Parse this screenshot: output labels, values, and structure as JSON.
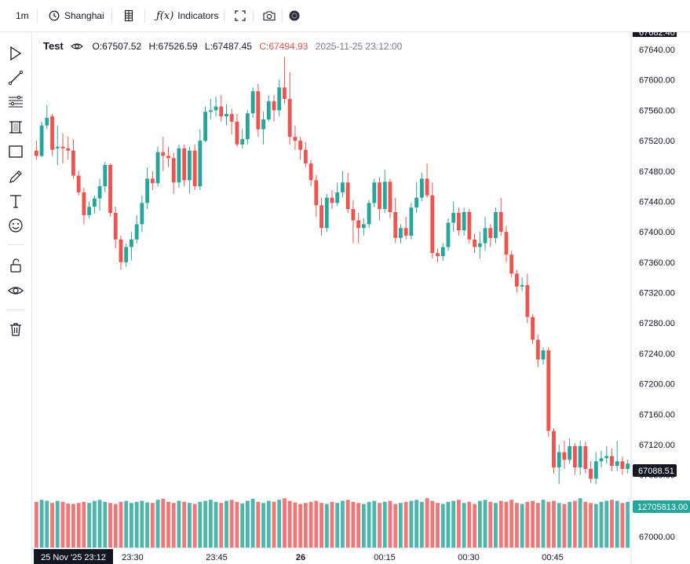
{
  "toolbar": {
    "interval": "1m",
    "timezone": "Shanghai",
    "indicators_label": "Indicators",
    "fx_label": "ƒ(x)",
    "icons": [
      "clock-icon",
      "bar-style-icon",
      "fullscreen-icon",
      "camera-icon",
      "theme-icon"
    ]
  },
  "drawing_tools": [
    "cursor-icon",
    "trend-line-icon",
    "fib-icon",
    "pattern-icon",
    "rectangle-icon",
    "brush-icon",
    "text-icon",
    "emoji-icon",
    "lock-icon",
    "eye-icon",
    "trash-icon"
  ],
  "legend": {
    "symbol": "Test",
    "open": "O:67507.52",
    "high": "H:67526.59",
    "low": "L:67487.45",
    "close": "C:67494.93",
    "time": "2025-11-25 23:12:00"
  },
  "colors": {
    "up": "#26a69a",
    "down": "#ef5350",
    "up_vol": "#4db6ac",
    "down_vol": "#f07777",
    "grid_text": "#131722"
  },
  "chart_data": {
    "type": "candlestick",
    "price_axis": {
      "ticks": [
        "67640.00",
        "67600.00",
        "67560.00",
        "67520.00",
        "67480.00",
        "67440.00",
        "67400.00",
        "67360.00",
        "67320.00",
        "67280.00",
        "67240.00",
        "67200.00",
        "67160.00",
        "67120.00",
        "67080.00",
        "67000.00"
      ],
      "top_label": "67682.40",
      "last_price_label": "67088.51",
      "volume_label": "12705813.00",
      "range": [
        67000,
        67682.4
      ]
    },
    "time_axis": {
      "ticks": [
        "23:30",
        "23:45",
        "26",
        "00:15",
        "00:30",
        "00:45"
      ],
      "cursor_label": "25 Nov '25  23:12"
    },
    "candles": [
      {
        "o": 67507,
        "h": 67520,
        "l": 67495,
        "c": 67500
      },
      {
        "o": 67500,
        "h": 67545,
        "l": 67498,
        "c": 67540
      },
      {
        "o": 67540,
        "h": 67567,
        "l": 67535,
        "c": 67550
      },
      {
        "o": 67552,
        "h": 67555,
        "l": 67500,
        "c": 67508
      },
      {
        "o": 67510,
        "h": 67540,
        "l": 67488,
        "c": 67512
      },
      {
        "o": 67512,
        "h": 67530,
        "l": 67490,
        "c": 67510
      },
      {
        "o": 67510,
        "h": 67525,
        "l": 67495,
        "c": 67507
      },
      {
        "o": 67507,
        "h": 67522,
        "l": 67470,
        "c": 67474
      },
      {
        "o": 67474,
        "h": 67480,
        "l": 67448,
        "c": 67452
      },
      {
        "o": 67452,
        "h": 67458,
        "l": 67410,
        "c": 67422
      },
      {
        "o": 67422,
        "h": 67440,
        "l": 67418,
        "c": 67433
      },
      {
        "o": 67433,
        "h": 67448,
        "l": 67424,
        "c": 67444
      },
      {
        "o": 67444,
        "h": 67470,
        "l": 67428,
        "c": 67460
      },
      {
        "o": 67460,
        "h": 67492,
        "l": 67452,
        "c": 67488
      },
      {
        "o": 67488,
        "h": 67490,
        "l": 67420,
        "c": 67425
      },
      {
        "o": 67425,
        "h": 67433,
        "l": 67378,
        "c": 67390
      },
      {
        "o": 67390,
        "h": 67395,
        "l": 67350,
        "c": 67360
      },
      {
        "o": 67360,
        "h": 67385,
        "l": 67354,
        "c": 67380
      },
      {
        "o": 67380,
        "h": 67400,
        "l": 67362,
        "c": 67390
      },
      {
        "o": 67390,
        "h": 67422,
        "l": 67385,
        "c": 67410
      },
      {
        "o": 67410,
        "h": 67448,
        "l": 67400,
        "c": 67438
      },
      {
        "o": 67438,
        "h": 67485,
        "l": 67430,
        "c": 67470
      },
      {
        "o": 67470,
        "h": 67480,
        "l": 67455,
        "c": 67464
      },
      {
        "o": 67464,
        "h": 67512,
        "l": 67460,
        "c": 67505
      },
      {
        "o": 67505,
        "h": 67525,
        "l": 67480,
        "c": 67500
      },
      {
        "o": 67500,
        "h": 67512,
        "l": 67485,
        "c": 67497
      },
      {
        "o": 67497,
        "h": 67504,
        "l": 67450,
        "c": 67465
      },
      {
        "o": 67465,
        "h": 67515,
        "l": 67458,
        "c": 67510
      },
      {
        "o": 67510,
        "h": 67515,
        "l": 67460,
        "c": 67468
      },
      {
        "o": 67468,
        "h": 67512,
        "l": 67450,
        "c": 67507
      },
      {
        "o": 67507,
        "h": 67515,
        "l": 67455,
        "c": 67460
      },
      {
        "o": 67460,
        "h": 67535,
        "l": 67455,
        "c": 67520
      },
      {
        "o": 67520,
        "h": 67565,
        "l": 67518,
        "c": 67558
      },
      {
        "o": 67558,
        "h": 67575,
        "l": 67548,
        "c": 67560
      },
      {
        "o": 67560,
        "h": 67578,
        "l": 67552,
        "c": 67565
      },
      {
        "o": 67565,
        "h": 67580,
        "l": 67545,
        "c": 67552
      },
      {
        "o": 67552,
        "h": 67568,
        "l": 67540,
        "c": 67555
      },
      {
        "o": 67555,
        "h": 67562,
        "l": 67528,
        "c": 67545
      },
      {
        "o": 67545,
        "h": 67555,
        "l": 67512,
        "c": 67515
      },
      {
        "o": 67515,
        "h": 67535,
        "l": 67510,
        "c": 67522
      },
      {
        "o": 67522,
        "h": 67560,
        "l": 67515,
        "c": 67556
      },
      {
        "o": 67556,
        "h": 67590,
        "l": 67550,
        "c": 67585
      },
      {
        "o": 67585,
        "h": 67595,
        "l": 67525,
        "c": 67535
      },
      {
        "o": 67535,
        "h": 67558,
        "l": 67515,
        "c": 67548
      },
      {
        "o": 67548,
        "h": 67580,
        "l": 67545,
        "c": 67572
      },
      {
        "o": 67572,
        "h": 67580,
        "l": 67545,
        "c": 67560
      },
      {
        "o": 67560,
        "h": 67600,
        "l": 67552,
        "c": 67590
      },
      {
        "o": 67590,
        "h": 67630,
        "l": 67568,
        "c": 67575
      },
      {
        "o": 67575,
        "h": 67610,
        "l": 67515,
        "c": 67525
      },
      {
        "o": 67525,
        "h": 67540,
        "l": 67508,
        "c": 67520
      },
      {
        "o": 67520,
        "h": 67525,
        "l": 67495,
        "c": 67508
      },
      {
        "o": 67508,
        "h": 67518,
        "l": 67485,
        "c": 67490
      },
      {
        "o": 67490,
        "h": 67495,
        "l": 67460,
        "c": 67468
      },
      {
        "o": 67468,
        "h": 67475,
        "l": 67420,
        "c": 67435
      },
      {
        "o": 67435,
        "h": 67445,
        "l": 67395,
        "c": 67405
      },
      {
        "o": 67405,
        "h": 67450,
        "l": 67400,
        "c": 67445
      },
      {
        "o": 67445,
        "h": 67455,
        "l": 67430,
        "c": 67438
      },
      {
        "o": 67438,
        "h": 67465,
        "l": 67434,
        "c": 67452
      },
      {
        "o": 67452,
        "h": 67480,
        "l": 67445,
        "c": 67465
      },
      {
        "o": 67465,
        "h": 67478,
        "l": 67425,
        "c": 67430
      },
      {
        "o": 67430,
        "h": 67442,
        "l": 67385,
        "c": 67415
      },
      {
        "o": 67415,
        "h": 67425,
        "l": 67385,
        "c": 67405
      },
      {
        "o": 67405,
        "h": 67418,
        "l": 67395,
        "c": 67410
      },
      {
        "o": 67410,
        "h": 67442,
        "l": 67405,
        "c": 67438
      },
      {
        "o": 67438,
        "h": 67470,
        "l": 67432,
        "c": 67465
      },
      {
        "o": 67465,
        "h": 67472,
        "l": 67415,
        "c": 67430
      },
      {
        "o": 67430,
        "h": 67482,
        "l": 67425,
        "c": 67466
      },
      {
        "o": 67466,
        "h": 67470,
        "l": 67418,
        "c": 67426
      },
      {
        "o": 67426,
        "h": 67445,
        "l": 67385,
        "c": 67392
      },
      {
        "o": 67392,
        "h": 67410,
        "l": 67385,
        "c": 67405
      },
      {
        "o": 67405,
        "h": 67420,
        "l": 67390,
        "c": 67395
      },
      {
        "o": 67395,
        "h": 67438,
        "l": 67390,
        "c": 67432
      },
      {
        "o": 67432,
        "h": 67465,
        "l": 67425,
        "c": 67445
      },
      {
        "o": 67445,
        "h": 67478,
        "l": 67440,
        "c": 67470
      },
      {
        "o": 67470,
        "h": 67490,
        "l": 67445,
        "c": 67448
      },
      {
        "o": 67448,
        "h": 67465,
        "l": 67365,
        "c": 67372
      },
      {
        "o": 67372,
        "h": 67378,
        "l": 67360,
        "c": 67368
      },
      {
        "o": 67368,
        "h": 67385,
        "l": 67362,
        "c": 67380
      },
      {
        "o": 67380,
        "h": 67418,
        "l": 67375,
        "c": 67412
      },
      {
        "o": 67412,
        "h": 67440,
        "l": 67400,
        "c": 67425
      },
      {
        "o": 67425,
        "h": 67432,
        "l": 67395,
        "c": 67402
      },
      {
        "o": 67402,
        "h": 67432,
        "l": 67395,
        "c": 67426
      },
      {
        "o": 67426,
        "h": 67430,
        "l": 67385,
        "c": 67390
      },
      {
        "o": 67390,
        "h": 67398,
        "l": 67372,
        "c": 67380
      },
      {
        "o": 67380,
        "h": 67400,
        "l": 67365,
        "c": 67385
      },
      {
        "o": 67385,
        "h": 67420,
        "l": 67375,
        "c": 67405
      },
      {
        "o": 67405,
        "h": 67410,
        "l": 67380,
        "c": 67392
      },
      {
        "o": 67392,
        "h": 67432,
        "l": 67385,
        "c": 67426
      },
      {
        "o": 67426,
        "h": 67445,
        "l": 67395,
        "c": 67400
      },
      {
        "o": 67400,
        "h": 67408,
        "l": 67360,
        "c": 67370
      },
      {
        "o": 67370,
        "h": 67375,
        "l": 67340,
        "c": 67345
      },
      {
        "o": 67345,
        "h": 67350,
        "l": 67320,
        "c": 67328
      },
      {
        "o": 67328,
        "h": 67340,
        "l": 67322,
        "c": 67330
      },
      {
        "o": 67330,
        "h": 67345,
        "l": 67280,
        "c": 67288
      },
      {
        "o": 67288,
        "h": 67292,
        "l": 67252,
        "c": 67258
      },
      {
        "o": 67258,
        "h": 67265,
        "l": 67222,
        "c": 67232
      },
      {
        "o": 67232,
        "h": 67248,
        "l": 67225,
        "c": 67244
      },
      {
        "o": 67244,
        "h": 67248,
        "l": 67130,
        "c": 67138
      },
      {
        "o": 67138,
        "h": 67142,
        "l": 67082,
        "c": 67090
      },
      {
        "o": 67090,
        "h": 67120,
        "l": 67068,
        "c": 67110
      },
      {
        "o": 67110,
        "h": 67125,
        "l": 67088,
        "c": 67100
      },
      {
        "o": 67100,
        "h": 67128,
        "l": 67095,
        "c": 67118
      },
      {
        "o": 67118,
        "h": 67122,
        "l": 67080,
        "c": 67090
      },
      {
        "o": 67090,
        "h": 67125,
        "l": 67080,
        "c": 67118
      },
      {
        "o": 67118,
        "h": 67124,
        "l": 67082,
        "c": 67088
      },
      {
        "o": 67088,
        "h": 67098,
        "l": 67070,
        "c": 67075
      },
      {
        "o": 67075,
        "h": 67110,
        "l": 67068,
        "c": 67098
      },
      {
        "o": 67098,
        "h": 67112,
        "l": 67090,
        "c": 67102
      },
      {
        "o": 67102,
        "h": 67118,
        "l": 67095,
        "c": 67105
      },
      {
        "o": 67105,
        "h": 67115,
        "l": 67085,
        "c": 67092
      },
      {
        "o": 67092,
        "h": 67125,
        "l": 67085,
        "c": 67098
      },
      {
        "o": 67098,
        "h": 67104,
        "l": 67080,
        "c": 67088
      },
      {
        "o": 67088,
        "h": 67100,
        "l": 67082,
        "c": 67095
      }
    ],
    "volumes": [
      0.88,
      0.92,
      0.9,
      0.86,
      0.9,
      0.88,
      0.85,
      0.84,
      0.86,
      0.88,
      0.86,
      0.9,
      0.92,
      0.88,
      0.86,
      0.84,
      0.88,
      0.9,
      0.86,
      0.88,
      0.9,
      0.87,
      0.86,
      0.92,
      0.94,
      0.88,
      0.86,
      0.9,
      0.88,
      0.86,
      0.84,
      0.88,
      0.9,
      0.92,
      0.88,
      0.86,
      0.9,
      0.92,
      0.88,
      0.85,
      0.9,
      0.94,
      0.88,
      0.86,
      0.9,
      0.88,
      0.92,
      0.95,
      0.9,
      0.87,
      0.84,
      0.86,
      0.88,
      0.9,
      0.86,
      0.84,
      0.88,
      0.86,
      0.9,
      0.92,
      0.88,
      0.86,
      0.84,
      0.88,
      0.9,
      0.86,
      0.88,
      0.9,
      0.84,
      0.86,
      0.88,
      0.9,
      0.92,
      0.88,
      0.95,
      0.9,
      0.86,
      0.84,
      0.88,
      0.9,
      0.92,
      0.86,
      0.88,
      0.84,
      0.9,
      0.92,
      0.88,
      0.86,
      0.9,
      0.88,
      0.92,
      0.86,
      0.84,
      0.88,
      0.9,
      0.86,
      0.92,
      0.88,
      0.9,
      0.86,
      0.84,
      0.88,
      0.9,
      0.95,
      0.88,
      0.86,
      0.84,
      0.88,
      0.9,
      0.92,
      0.9,
      0.86,
      0.88
    ]
  }
}
